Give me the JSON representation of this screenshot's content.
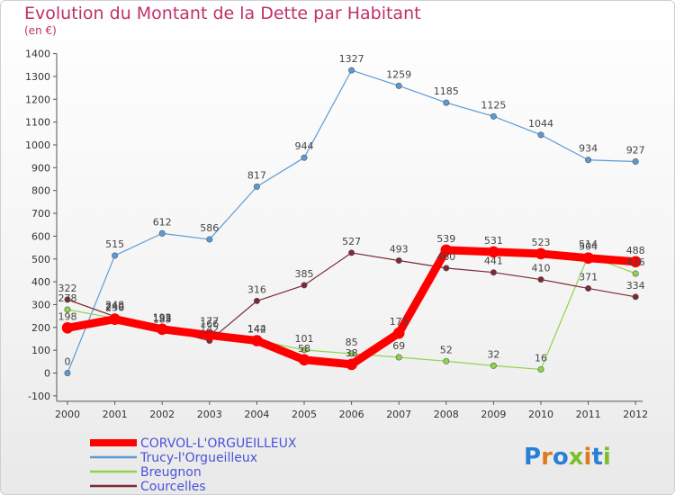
{
  "header": {
    "title": "Evolution du Montant de la Dette par Habitant",
    "unit": "(en €)"
  },
  "logo": {
    "text": "Proxiti",
    "icon": "proxiti-logo"
  },
  "colors": {
    "title": "#c0306a",
    "legend_text": "#4a52d8"
  },
  "chart_data": {
    "type": "line",
    "title": "Evolution du Montant de la Dette par Habitant",
    "ylabel": "(en €)",
    "xlabel": "",
    "ylim": [
      -100,
      1400
    ],
    "yticks": [
      -100,
      0,
      100,
      200,
      300,
      400,
      500,
      600,
      700,
      800,
      900,
      1000,
      1100,
      1200,
      1300,
      1400
    ],
    "x": [
      "2000",
      "2001",
      "2002",
      "2003",
      "2004",
      "2005",
      "2006",
      "2007",
      "2008",
      "2009",
      "2010",
      "2011",
      "2012"
    ],
    "grid": false,
    "legend_position": "bottom-left",
    "series": [
      {
        "name": "Trucy-l'Orgueilleux",
        "color": "#5b9bd5",
        "width": 1.2,
        "values": [
          0,
          515,
          612,
          586,
          817,
          944,
          1327,
          1259,
          1185,
          1125,
          1044,
          934,
          927
        ],
        "labels": [
          "0",
          "515",
          "612",
          "586",
          "817",
          "944",
          "1327",
          "1259",
          "1185",
          "1125",
          "1044",
          "934",
          "927"
        ]
      },
      {
        "name": "Breugnon",
        "color": "#8fd44a",
        "width": 1.2,
        "values": [
          278,
          240,
          185,
          177,
          144,
          101,
          85,
          69,
          52,
          32,
          16,
          514,
          436
        ],
        "labels": [
          "278",
          "240",
          "185",
          "177",
          "144",
          "101",
          "85",
          "69",
          "52",
          "32",
          "16",
          "514",
          "436"
        ]
      },
      {
        "name": "Courcelles",
        "color": "#7a2a35",
        "width": 1.2,
        "values": [
          322,
          248,
          193,
          142,
          316,
          385,
          527,
          493,
          460,
          441,
          410,
          371,
          334
        ],
        "labels": [
          "322",
          "248",
          "193",
          "142",
          "316",
          "385",
          "527",
          "493",
          "460",
          "441",
          "410",
          "371",
          "334"
        ]
      },
      {
        "name": "CORVOL-L'ORGUEILLEUX",
        "color": "#ff0000",
        "width": 9,
        "values": [
          198,
          236,
          192,
          166,
          142,
          58,
          38,
          175,
          539,
          531,
          523,
          504,
          488
        ],
        "labels": [
          "198",
          "236",
          "192",
          "166",
          "142",
          "58",
          "38",
          "175",
          "539",
          "531",
          "523",
          "504",
          "488"
        ]
      }
    ],
    "legend_order": [
      "CORVOL-L'ORGUEILLEUX",
      "Trucy-l'Orgueilleux",
      "Breugnon",
      "Courcelles"
    ]
  }
}
